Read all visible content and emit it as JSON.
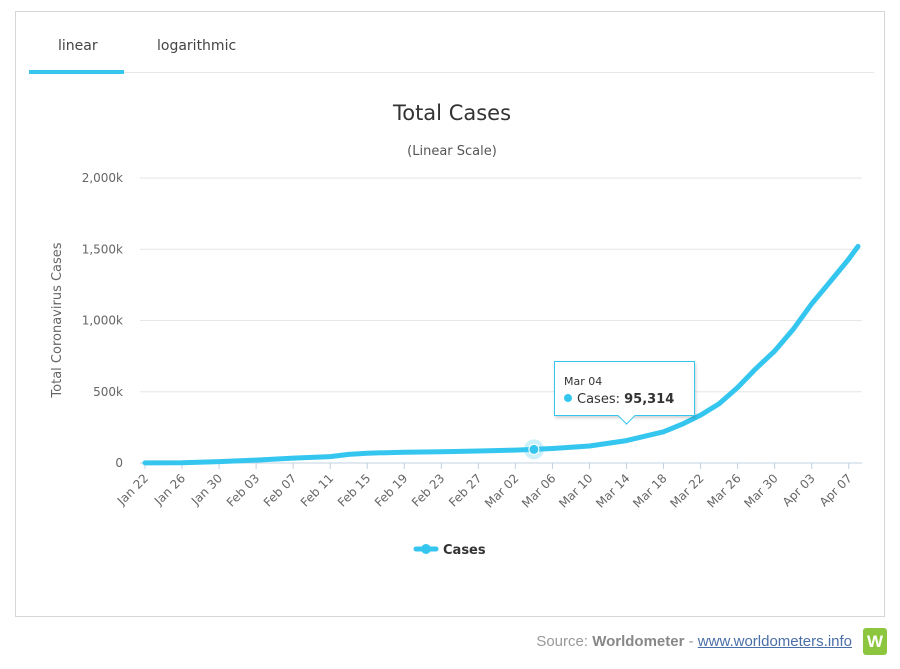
{
  "tabs": [
    {
      "label": "linear",
      "active": true
    },
    {
      "label": "logarithmic",
      "active": false
    }
  ],
  "colors": {
    "series": "#35c6ef",
    "grid": "#e6e6e6",
    "axis": "#c0d0e0",
    "logo": "#8cc63f"
  },
  "tooltip": {
    "date": "Mar 04",
    "series": "Cases",
    "value": "95,314"
  },
  "source": {
    "prefix": "Source: ",
    "name": "Worldometer",
    "sep": " - ",
    "link": "www.worldometers.info",
    "logo_letter": "W"
  },
  "chart_data": {
    "type": "line",
    "title": "Total Cases",
    "subtitle": "(Linear Scale)",
    "ylabel": "Total Coronavirus Cases",
    "xlabel": "",
    "ylim": [
      0,
      2000000
    ],
    "yticks": [
      "0",
      "500k",
      "1,000k",
      "1,500k",
      "2,000k"
    ],
    "ytick_values": [
      0,
      500000,
      1000000,
      1500000,
      2000000
    ],
    "xticks": [
      "Jan 22",
      "Jan 26",
      "Jan 30",
      "Feb 03",
      "Feb 07",
      "Feb 11",
      "Feb 15",
      "Feb 19",
      "Feb 23",
      "Feb 27",
      "Mar 02",
      "Mar 06",
      "Mar 10",
      "Mar 14",
      "Mar 18",
      "Mar 22",
      "Mar 26",
      "Mar 30",
      "Apr 03",
      "Apr 07"
    ],
    "grid": true,
    "legend": "bottom-center",
    "series": [
      {
        "name": "Cases",
        "x": [
          "Jan 22",
          "Jan 26",
          "Jan 30",
          "Feb 03",
          "Feb 07",
          "Feb 11",
          "Feb 13",
          "Feb 15",
          "Feb 19",
          "Feb 23",
          "Feb 27",
          "Mar 02",
          "Mar 04",
          "Mar 06",
          "Mar 10",
          "Mar 14",
          "Mar 18",
          "Mar 20",
          "Mar 22",
          "Mar 24",
          "Mar 26",
          "Mar 28",
          "Mar 30",
          "Apr 01",
          "Apr 03",
          "Apr 05",
          "Apr 07",
          "Apr 08"
        ],
        "values": [
          555,
          2118,
          9927,
          20630,
          34391,
          45171,
          60000,
          69000,
          76000,
          79500,
          84100,
          90400,
          95314,
          102000,
          119000,
          157000,
          219000,
          272000,
          336000,
          416000,
          530000,
          664000,
          786000,
          938000,
          1117000,
          1273000,
          1431000,
          1520000
        ]
      }
    ],
    "highlight": {
      "x": "Mar 04",
      "value": 95314
    }
  }
}
